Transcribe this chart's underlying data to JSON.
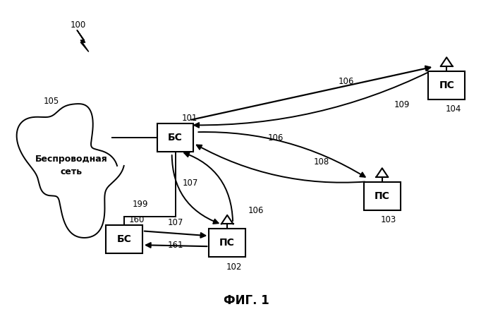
{
  "title": "ФИГ. 1",
  "background_color": "#ffffff",
  "label_100": "100",
  "label_101": "101",
  "label_102": "102",
  "label_103": "103",
  "label_104": "104",
  "label_105": "105",
  "label_106": "106",
  "label_107": "107",
  "label_108": "108",
  "label_109": "109",
  "label_160": "160",
  "label_161": "161",
  "label_199": "199",
  "bs_label": "БС",
  "ps_label": "ПС",
  "network_label": "Беспроводная\nсеть",
  "fig_width": 6.99,
  "fig_height": 4.45,
  "dpi": 100
}
